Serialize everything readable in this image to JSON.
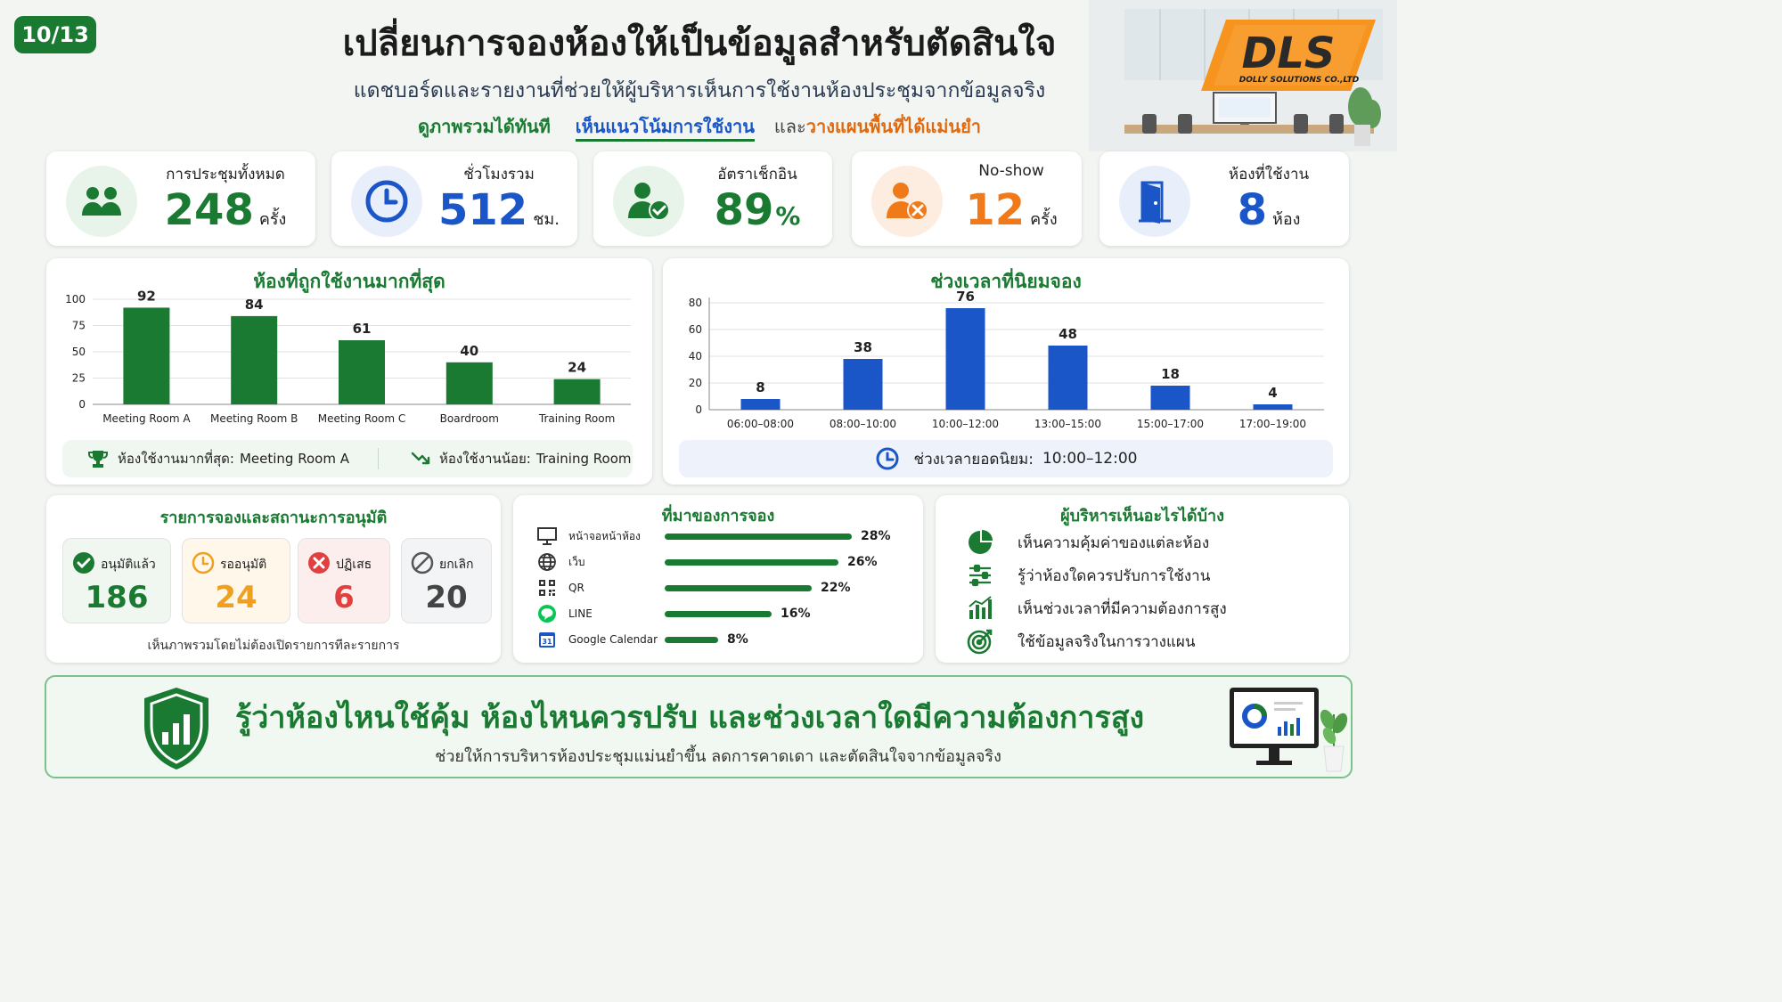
{
  "page_number": "10/13",
  "title": "เปลี่ยนการจองห้องให้เป็นข้อมูลสำหรับตัดสินใจ",
  "subtitle": "แดชบอร์ดและรายงานที่ช่วยให้ผู้บริหารเห็นการใช้งานห้องประชุมจากข้อมูลจริง",
  "tagline": {
    "part1": "ดูภาพรวมได้ทันที",
    "part2": "เห็นแนวโน้มการใช้งาน",
    "connector": "และ",
    "part3": "วางแผนพื้นที่ได้แม่นยำ"
  },
  "logo": {
    "text": "DLS",
    "company": "DOLLY SOLUTIONS CO.,LTD"
  },
  "kpis": [
    {
      "label": "การประชุมทั้งหมด",
      "value": "248",
      "unit": "ครั้ง",
      "icon": "people-icon",
      "color": "#1a7a32"
    },
    {
      "label": "ชั่วโมงรวม",
      "value": "512",
      "unit": "ชม.",
      "icon": "clock-icon",
      "color": "#1a56c8"
    },
    {
      "label": "อัตราเช็กอิน",
      "value": "89",
      "unit": "%",
      "icon": "user-check-icon",
      "color": "#1a7a32"
    },
    {
      "label": "No-show",
      "value": "12",
      "unit": "ครั้ง",
      "icon": "user-x-icon",
      "color": "#f07a1a"
    },
    {
      "label": "ห้องที่ใช้งาน",
      "value": "8",
      "unit": "ห้อง",
      "icon": "door-icon",
      "color": "#1a56c8"
    }
  ],
  "chart_data": [
    {
      "type": "bar",
      "title": "ห้องที่ถูกใช้งานมากที่สุด",
      "categories": [
        "Meeting Room A",
        "Meeting Room B",
        "Meeting Room C",
        "Boardroom",
        "Training Room"
      ],
      "values": [
        92,
        84,
        61,
        40,
        24
      ],
      "y_ticks": [
        "0",
        "25",
        "50",
        "75",
        "100"
      ],
      "ylim": [
        0,
        100
      ],
      "grid": true,
      "color": "#1a7a32"
    },
    {
      "type": "bar",
      "title": "ช่วงเวลาที่นิยมจอง",
      "categories": [
        "06:00–08:00",
        "08:00–10:00",
        "10:00–12:00",
        "13:00–15:00",
        "15:00–17:00",
        "17:00–19:00"
      ],
      "values": [
        8,
        38,
        76,
        48,
        18,
        4
      ],
      "y_ticks": [
        "0",
        "20",
        "40",
        "60",
        "80"
      ],
      "ylim": [
        0,
        80
      ],
      "grid": true,
      "color": "#1a56c8"
    }
  ],
  "rooms_summary": {
    "most_label": "ห้องใช้งานมากที่สุด:",
    "most_value": "Meeting Room A",
    "least_label": "ห้องใช้งานน้อย:",
    "least_value": "Training Room"
  },
  "peak_summary": {
    "label": "ช่วงเวลายอดนิยม:",
    "value": "10:00–12:00"
  },
  "status_panel": {
    "title": "รายการจองและสถานะการอนุมัติ",
    "items": [
      {
        "label": "อนุมัติแล้ว",
        "value": "186",
        "icon": "check-circle-icon"
      },
      {
        "label": "รออนุมัติ",
        "value": "24",
        "icon": "clock-icon"
      },
      {
        "label": "ปฏิเสธ",
        "value": "6",
        "icon": "x-circle-icon"
      },
      {
        "label": "ยกเลิก",
        "value": "20",
        "icon": "cancel-icon"
      }
    ],
    "note": "เห็นภาพรวมโดยไม่ต้องเปิดรายการทีละรายการ"
  },
  "source_panel": {
    "title": "ที่มาของการจอง",
    "items": [
      {
        "label": "หน้าจอหน้าห้อง",
        "pct": 28,
        "pct_label": "28%",
        "icon": "monitor-icon"
      },
      {
        "label": "เว็บ",
        "pct": 26,
        "pct_label": "26%",
        "icon": "globe-icon"
      },
      {
        "label": "QR",
        "pct": 22,
        "pct_label": "22%",
        "icon": "qr-icon"
      },
      {
        "label": "LINE",
        "pct": 16,
        "pct_label": "16%",
        "icon": "line-icon"
      },
      {
        "label": "Google Calendar",
        "pct": 8,
        "pct_label": "8%",
        "icon": "calendar-icon"
      }
    ]
  },
  "insights_panel": {
    "title": "ผู้บริหารเห็นอะไรได้บ้าง",
    "items": [
      {
        "text": "เห็นความคุ้มค่าของแต่ละห้อง",
        "icon": "pie-chart-icon"
      },
      {
        "text": "รู้ว่าห้องใดควรปรับการใช้งาน",
        "icon": "sliders-icon"
      },
      {
        "text": "เห็นช่วงเวลาที่มีความต้องการสูง",
        "icon": "bar-chart-icon"
      },
      {
        "text": "ใช้ข้อมูลจริงในการวางแผน",
        "icon": "target-icon"
      }
    ]
  },
  "banner": {
    "title": "รู้ว่าห้องไหนใช้คุ้ม ห้องไหนควรปรับ และช่วงเวลาใดมีความต้องการสูง",
    "subtitle": "ช่วยให้การบริหารห้องประชุมแม่นยำขึ้น ลดการคาดเดา และตัดสินใจจากข้อมูลจริง"
  }
}
